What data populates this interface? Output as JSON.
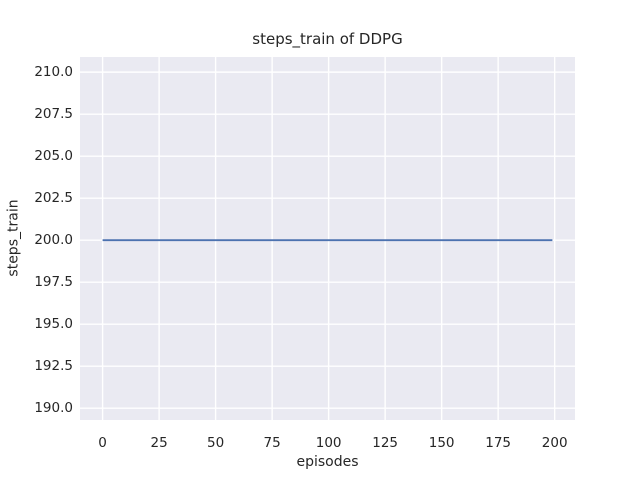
{
  "figure": {
    "background_color": "#ffffff"
  },
  "chart_data": {
    "type": "line",
    "title": "steps_train of DDPG",
    "xlabel": "episodes",
    "ylabel": "steps_train",
    "xlim": [
      -10,
      209
    ],
    "ylim": [
      189.3,
      210.9
    ],
    "x_tick_values": [
      0,
      25,
      50,
      75,
      100,
      125,
      150,
      175,
      200
    ],
    "x_tick_labels": [
      "0",
      "25",
      "50",
      "75",
      "100",
      "125",
      "150",
      "175",
      "200"
    ],
    "y_tick_values": [
      190.0,
      192.5,
      195.0,
      197.5,
      200.0,
      202.5,
      205.0,
      207.5,
      210.0
    ],
    "y_tick_labels": [
      "190.0",
      "192.5",
      "195.0",
      "197.5",
      "200.0",
      "202.5",
      "205.0",
      "207.5",
      "210.0"
    ],
    "grid": true,
    "legend": "none",
    "plot_bg_color": "#eaeaf2",
    "grid_color": "#ffffff",
    "text_color": "#262626",
    "series": [
      {
        "name": "steps_train",
        "color": "#4c72b0",
        "line_width": 1.8,
        "x": [
          0,
          199
        ],
        "values": [
          200,
          200
        ]
      }
    ]
  }
}
